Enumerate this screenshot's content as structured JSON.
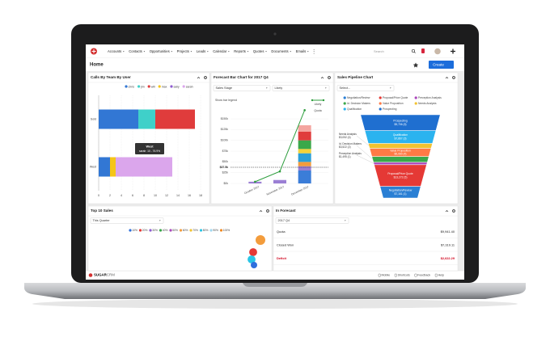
{
  "nav": {
    "items": [
      "Accounts",
      "Contacts",
      "Opportunities",
      "Projects",
      "Leads",
      "Calendar",
      "Reports",
      "Quotes",
      "Documents",
      "Emails"
    ],
    "search": "Search"
  },
  "header": {
    "title": "Home",
    "create": "Create"
  },
  "calls_by_team": {
    "title": "Calls By Team By User",
    "chart": {
      "type": "bar",
      "orientation": "horizontal",
      "stacked": true,
      "categories": [
        "Sold",
        "West"
      ],
      "series": [
        {
          "name": "chris",
          "color": "#3277d4",
          "values": [
            7,
            2
          ]
        },
        {
          "name": "jim",
          "color": "#3fd0c9",
          "values": [
            3,
            0
          ]
        },
        {
          "name": "will",
          "color": "#e03c3c",
          "values": [
            7,
            0
          ]
        },
        {
          "name": "max",
          "color": "#f5c518",
          "values": [
            0,
            1
          ]
        },
        {
          "name": "sally",
          "color": "#8e5bd0",
          "values": [
            0,
            0
          ]
        },
        {
          "name": "sarah",
          "color": "#dba6ec",
          "values": [
            0,
            10
          ]
        }
      ],
      "xlim": [
        0,
        18
      ],
      "xticks": [
        0,
        2,
        4,
        6,
        8,
        10,
        12,
        14,
        16,
        18
      ],
      "grid": true,
      "tooltip": {
        "title": "West",
        "text": "sarah: 10 - 76.9%"
      }
    }
  },
  "forecast": {
    "title": "Forecast Bar Chart for 2017 Q4",
    "selects": [
      "Sales Stage",
      "Likely"
    ],
    "legend_toggle": "Show bar legend",
    "chart": {
      "type": "bar",
      "stacked": true,
      "categories": [
        "October 2017",
        "November 2017",
        "December 2017"
      ],
      "stacks": [
        {
          "color": "#3b7dd8",
          "values": [
            0,
            0,
            30
          ]
        },
        {
          "color": "#9b7fd4",
          "values": [
            4,
            8,
            10
          ]
        },
        {
          "color": "#f39c3c",
          "values": [
            0,
            0,
            10
          ]
        },
        {
          "color": "#2a9fd8",
          "values": [
            0,
            0,
            20
          ]
        },
        {
          "color": "#f2d23a",
          "values": [
            0,
            0,
            10
          ]
        },
        {
          "color": "#3aa84a",
          "values": [
            0,
            0,
            20
          ]
        },
        {
          "color": "#e03c3c",
          "values": [
            0,
            0,
            20
          ]
        },
        {
          "color": "#f4a5a0",
          "values": [
            0,
            0,
            15
          ]
        }
      ],
      "line": {
        "name": "Likely",
        "color": "#2e9e3e",
        "values": [
          4,
          28,
          170
        ]
      },
      "quota": {
        "name": "Quota",
        "value": 37.5,
        "label": "$37.5k"
      },
      "ylim": [
        0,
        180
      ],
      "yticks": [
        {
          "value": 0,
          "label": "$0k"
        },
        {
          "value": 25,
          "label": "$25k"
        },
        {
          "value": 50,
          "label": "$50k"
        },
        {
          "value": 75,
          "label": "$75k"
        },
        {
          "value": 100,
          "label": "$100k"
        },
        {
          "value": 125,
          "label": "$125k"
        },
        {
          "value": 150,
          "label": "$150k"
        }
      ]
    }
  },
  "pipeline": {
    "title": "Sales Pipeline Chart",
    "select": "Select...",
    "chart": {
      "type": "funnel",
      "stages": [
        {
          "name": "Prospecting",
          "color": "#1f6fd0",
          "amount": 9706,
          "value_label": "$9,706 (5)"
        },
        {
          "name": "Qualification",
          "color": "#2bb3ef",
          "amount": 7867,
          "value_label": "$7,867 (3)"
        },
        {
          "name": "Needs Analysis",
          "color": "#f2c230",
          "amount": 3052,
          "value_label": "$3,052 (4)"
        },
        {
          "name": "Value Proposition",
          "color": "#ff7a45",
          "amount": 5060,
          "value_label": "$5,060 (4)"
        },
        {
          "name": "Id. Decision Makers",
          "color": "#3aa84a",
          "amount": 3522,
          "value_label": "$3,522 (2)"
        },
        {
          "name": "Perception Analysis",
          "color": "#ab47bc",
          "amount": 1495,
          "value_label": "$1,495 (1)"
        },
        {
          "name": "Proposal/Price Quote",
          "color": "#e53935",
          "amount": 13272,
          "value_label": "$13,272 (5)"
        },
        {
          "name": "Negotiation/Review",
          "color": "#2a7fd4",
          "amount": 7161,
          "value_label": "$7,161 (1)"
        }
      ]
    }
  },
  "top_sales": {
    "title": "Top 10 Sales",
    "select": "This Quarter",
    "legend": [
      {
        "label": "10%",
        "color": "#2f6fdc"
      },
      {
        "label": "20%",
        "color": "#e53935"
      },
      {
        "label": "30%",
        "color": "#8e5bd0"
      },
      {
        "label": "40%",
        "color": "#3aa84a"
      },
      {
        "label": "50%",
        "color": "#ab47bc"
      },
      {
        "label": "60%",
        "color": "#f39c3c"
      },
      {
        "label": "70%",
        "color": "#f2c230"
      },
      {
        "label": "80%",
        "color": "#29c5e6"
      },
      {
        "label": "90%",
        "color": "#9fd8f0"
      },
      {
        "label": "100%",
        "color": "#f08a24"
      }
    ],
    "bubbles": [
      {
        "color": "#f39c3c",
        "value": 9
      },
      {
        "color": "#e53935",
        "value": 6
      },
      {
        "color": "#29c5e6",
        "value": 6
      },
      {
        "color": "#2f6fdc",
        "value": 4
      }
    ]
  },
  "in_forecast": {
    "title": "In Forecast",
    "select": "2017 Q4",
    "rows": [
      {
        "label": "Quota",
        "value": "$9,941.40"
      },
      {
        "label": "Closed Won",
        "value": "$7,319.11"
      },
      {
        "label": "Deficit",
        "value": "$2,622.29",
        "color": "#d0021b"
      }
    ]
  },
  "footer": {
    "brand_main": "SUGAR",
    "brand_sub": "CRM",
    "links": [
      "Mobile",
      "Shortcuts",
      "Feedback",
      "Help"
    ]
  }
}
